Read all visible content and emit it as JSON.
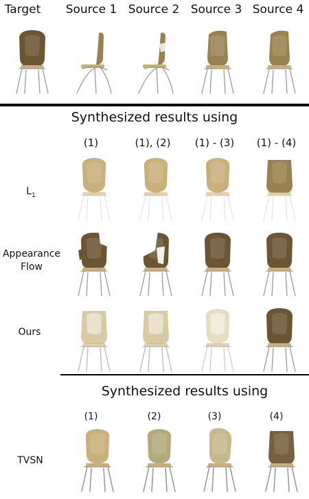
{
  "top_headers": [
    "Target",
    "Source 1",
    "Source 2",
    "Source 3",
    "Source 4"
  ],
  "section1": {
    "title": "Synthesized results using",
    "columns": [
      "(1)",
      "(1), (2)",
      "(1) - (3)",
      "(1) - (4)"
    ],
    "rows": [
      {
        "label": "L",
        "label_sub": "1"
      },
      {
        "label": "Appearance",
        "label2": "Flow"
      },
      {
        "label": "Ours"
      }
    ]
  },
  "section2": {
    "title": "Synthesized results using",
    "columns": [
      "(1)",
      "(2)",
      "(3)",
      "(4)"
    ],
    "rows": [
      {
        "label": "TVSN"
      }
    ]
  },
  "colors": {
    "wood_dark": "#6b5533",
    "wood_mid": "#9a8250",
    "wood_light": "#c9b07a",
    "blur_light": "#d8cba4",
    "metal": "#9a9a9a"
  }
}
